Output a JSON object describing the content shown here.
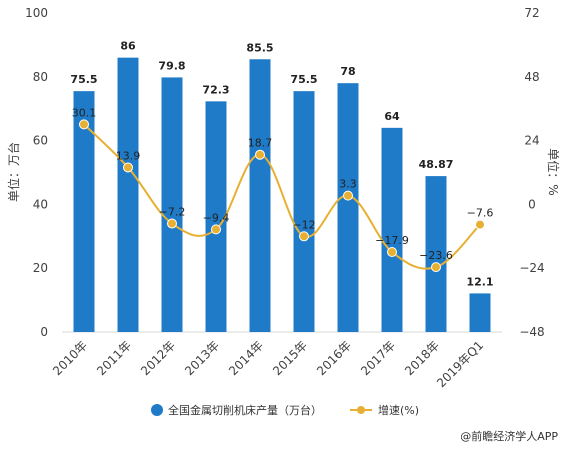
{
  "chart_data": {
    "type": "bar",
    "categories": [
      "2010年",
      "2011年",
      "2012年",
      "2013年",
      "2014年",
      "2015年",
      "2016年",
      "2017年",
      "2018年",
      "2019年Q1"
    ],
    "series": [
      {
        "name": "全国金属切削机床产量（万台）",
        "type": "bar",
        "axis": "left",
        "color": "#1f7bc8",
        "values": [
          75.5,
          86,
          79.8,
          72.3,
          85.5,
          75.5,
          78,
          64,
          48.87,
          12.1
        ],
        "labels": [
          "75.5",
          "86",
          "79.8",
          "72.3",
          "85.5",
          "75.5",
          "78",
          "64",
          "48.87",
          "12.1"
        ]
      },
      {
        "name": "增速(%)",
        "type": "line",
        "axis": "right",
        "color": "#e8b032",
        "values": [
          30.1,
          13.9,
          -7.2,
          -9.4,
          18.7,
          -12,
          3.3,
          -17.9,
          -23.6,
          -7.6
        ],
        "labels": [
          "30.1",
          "13.9",
          "−7.2",
          "−9.4",
          "18.7",
          "−12",
          "3.3",
          "−17.9",
          "−23.6",
          "−7.6"
        ]
      }
    ],
    "ylabel": "单位：万台",
    "y2label": "单位：%",
    "ylim": [
      0,
      100
    ],
    "y2lim": [
      -48,
      72
    ],
    "yticks": [
      "0",
      "20",
      "40",
      "60",
      "80",
      "100"
    ],
    "y2ticks": [
      "−48",
      "−24",
      "0",
      "24",
      "48",
      "72"
    ],
    "grid": false,
    "legend": "bottom",
    "credit": "@前瞻经济学人APP"
  }
}
